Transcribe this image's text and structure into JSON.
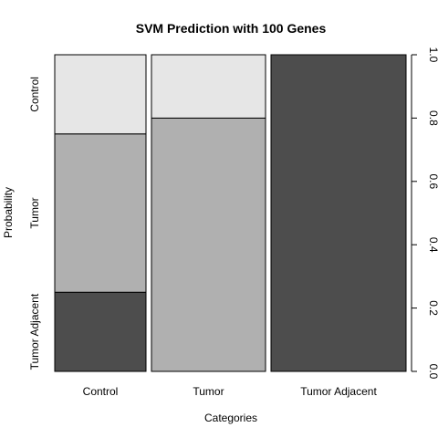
{
  "chart_data": {
    "type": "bar",
    "subtype": "stacked-proportion",
    "title": "SVM Prediction with 100 Genes",
    "xlabel": "Categories",
    "ylabel": "Probability",
    "categories": [
      "Control",
      "Tumor",
      "Tumor Adjacent"
    ],
    "category_widths": [
      100,
      125,
      148
    ],
    "series": [
      {
        "name": "Tumor Adjacent",
        "values": [
          0.25,
          0.0,
          1.0
        ],
        "color": "#4d4d4d"
      },
      {
        "name": "Tumor",
        "values": [
          0.5,
          0.8,
          0.0
        ],
        "color": "#b0b0b0"
      },
      {
        "name": "Control",
        "values": [
          0.25,
          0.2,
          0.0
        ],
        "color": "#e6e6e6"
      }
    ],
    "left_labels": [
      "Tumor Adjacent",
      "Tumor",
      "Control"
    ],
    "ylim": [
      0,
      1
    ],
    "y_ticks": [
      "0.0",
      "0.2",
      "0.4",
      "0.6",
      "0.8",
      "1.0"
    ],
    "y_axis_side": "right",
    "grid": false,
    "legend": "none"
  }
}
